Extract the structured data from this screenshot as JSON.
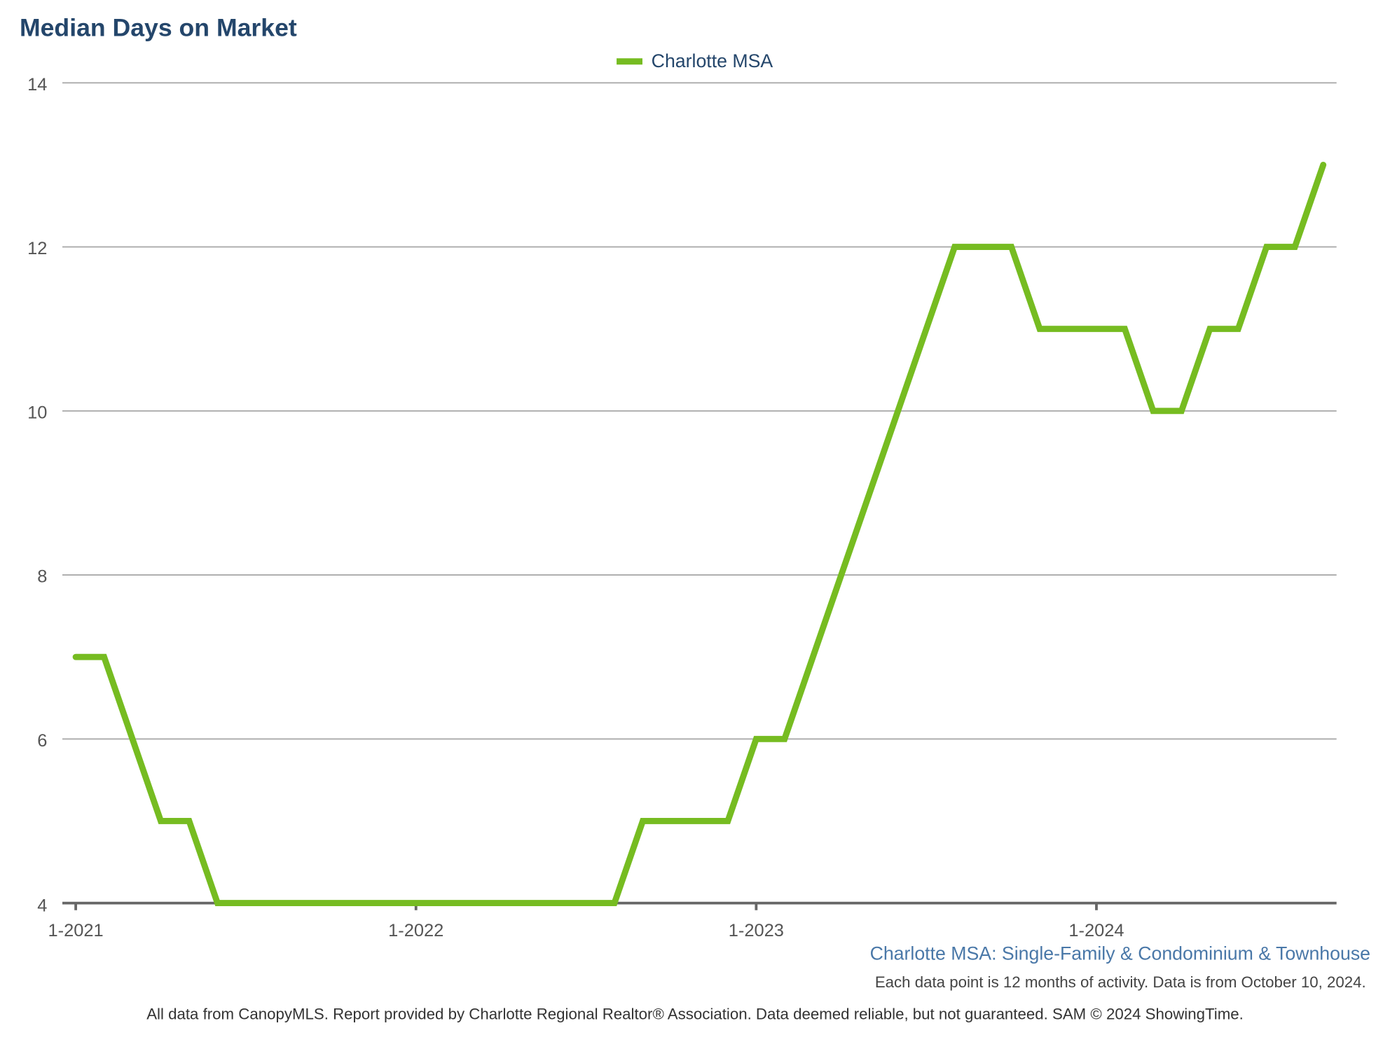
{
  "chart_data": {
    "type": "line",
    "title": "Median Days on Market",
    "subtitle": "Charlotte MSA: Single-Family & Condominium & Townhouse",
    "note": "Each data point is 12 months of activity. Data is from October 10, 2024.",
    "footer": "All data from CanopyMLS. Report provided by Charlotte Regional Realtor® Association. Data deemed reliable, but not guaranteed. SAM © 2024 ShowingTime.",
    "categories": [
      "1-2021",
      null,
      null,
      null,
      null,
      null,
      null,
      null,
      null,
      null,
      null,
      null,
      "1-2022",
      null,
      null,
      null,
      null,
      null,
      null,
      null,
      null,
      null,
      null,
      null,
      "1-2023",
      null,
      null,
      null,
      null,
      null,
      null,
      null,
      null,
      null,
      null,
      null,
      "1-2024",
      null,
      null,
      null,
      null,
      null,
      null,
      null,
      null
    ],
    "series": [
      {
        "name": "Charlotte MSA",
        "color": "#76bc21",
        "values": [
          7,
          7,
          6,
          5,
          5,
          4,
          4,
          4,
          4,
          4,
          4,
          4,
          4,
          4,
          4,
          4,
          4,
          4,
          4,
          4,
          5,
          5,
          5,
          5,
          6,
          6,
          7,
          8,
          9,
          10,
          11,
          12,
          12,
          12,
          11,
          11,
          11,
          11,
          10,
          10,
          11,
          11,
          12,
          12,
          13
        ]
      }
    ],
    "ylim": [
      4,
      14
    ],
    "yticks": [
      4,
      6,
      8,
      10,
      12,
      14
    ],
    "grid": true
  }
}
